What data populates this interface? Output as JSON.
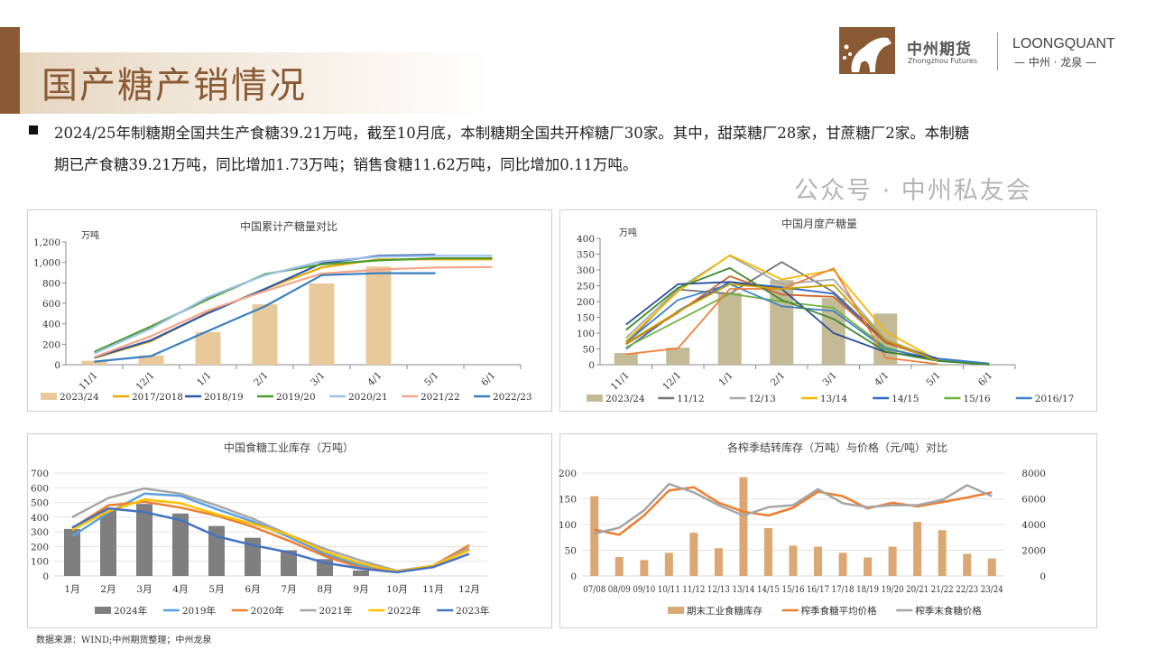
{
  "header": {
    "title": "国产糖产销情况",
    "logo_cn": "中州期货",
    "logo_en": "Zhongzhou Futures",
    "logo2": "LOONGQUANT",
    "logo2_cn": "— 中州 · 龙泉 —"
  },
  "summary": {
    "line1": "2024/25年制糖期全国共生产食糖39.21万吨，截至10月底，本制糖期全国共开榨糖厂30家。其中，甜菜糖厂28家，甘蔗糖厂2家。本制糖",
    "line2": "期已产食糖39.21万吨，同比增加1.73万吨；销售食糖11.62万吨，同比增加0.11万吨。"
  },
  "footer": {
    "source": "数据来源：WIND;中州期货整理；中州龙泉",
    "watermark": "公众号 · 中州私友会"
  },
  "colors": {
    "brand": "#8a5a34"
  },
  "chart_data": [
    {
      "type": "bar+line",
      "title": "中国累计产糖量对比",
      "ylabel": "万吨",
      "ylim": [
        0,
        1200
      ],
      "ystep": 200,
      "categories": [
        "11/1",
        "12/1",
        "1/1",
        "2/1",
        "3/1",
        "4/1",
        "5/1",
        "6/1"
      ],
      "series": [
        {
          "name": "2023/24",
          "kind": "bar",
          "color": "#e8c99a",
          "values": [
            38,
            90,
            320,
            590,
            795,
            960,
            null,
            null
          ]
        },
        {
          "name": "2017/2018",
          "kind": "line",
          "color": "#e8a800",
          "values": [
            65,
            230,
            510,
            740,
            950,
            1030,
            1030,
            1030
          ]
        },
        {
          "name": "2018/19",
          "kind": "line",
          "color": "#2f5aa8",
          "values": [
            70,
            240,
            505,
            740,
            990,
            1065,
            1075,
            null
          ]
        },
        {
          "name": "2019/20",
          "kind": "line",
          "color": "#4e9a2e",
          "values": [
            125,
            375,
            640,
            885,
            980,
            1020,
            1040,
            1040
          ]
        },
        {
          "name": "2020/21",
          "kind": "line",
          "color": "#9bbfe8",
          "values": [
            110,
            355,
            660,
            875,
            1010,
            1055,
            1065,
            1065
          ]
        },
        {
          "name": "2021/22",
          "kind": "line",
          "color": "#f4a58a",
          "values": [
            75,
            280,
            530,
            720,
            890,
            930,
            950,
            955
          ]
        },
        {
          "name": "2022/23",
          "kind": "line",
          "color": "#3a7fc0",
          "values": [
            30,
            85,
            330,
            570,
            875,
            895,
            895,
            null
          ]
        }
      ]
    },
    {
      "type": "bar+line",
      "title": "中国月度产糖量",
      "ylabel": "万吨",
      "ylim": [
        0,
        400
      ],
      "ystep": 50,
      "categories": [
        "11/1",
        "12/1",
        "1/1",
        "2/1",
        "3/1",
        "4/1",
        "5/1",
        "6/1"
      ],
      "series": [
        {
          "name": "2023/24",
          "kind": "bar",
          "color": "#c4bb96",
          "values": [
            37,
            54,
            228,
            268,
            211,
            162,
            null,
            null
          ]
        },
        {
          "name": "11/12",
          "kind": "line",
          "color": "#777777",
          "values": [
            65,
            238,
            225,
            325,
            230,
            75,
            15,
            2
          ]
        },
        {
          "name": "12/13",
          "kind": "line",
          "color": "#aaaaaa",
          "values": [
            85,
            240,
            345,
            255,
            270,
            80,
            18,
            3
          ]
        },
        {
          "name": "13/14",
          "kind": "line",
          "color": "#f5b800",
          "values": [
            75,
            232,
            347,
            270,
            300,
            105,
            15,
            2
          ]
        },
        {
          "name": "14/15",
          "kind": "line",
          "color": "#3568c8",
          "values": [
            50,
            170,
            262,
            245,
            225,
            70,
            20,
            4
          ]
        },
        {
          "name": "15/16",
          "kind": "line",
          "color": "#6db33f",
          "values": [
            55,
            140,
            225,
            200,
            180,
            55,
            12,
            1
          ]
        },
        {
          "name": "2016/17",
          "kind": "line",
          "color": "#3f82c4",
          "values": [
            70,
            205,
            255,
            185,
            170,
            50,
            18,
            3
          ]
        },
        {
          "name": "",
          "kind": "line",
          "color": "#f07f3a",
          "values": [
            33,
            52,
            240,
            240,
            305,
            22,
            2,
            null
          ]
        },
        {
          "name": "",
          "kind": "line",
          "color": "#d0642a",
          "values": [
            65,
            165,
            280,
            222,
            215,
            70,
            15,
            null
          ]
        },
        {
          "name": "",
          "kind": "line",
          "color": "#2b4f9a",
          "values": [
            127,
            255,
            262,
            240,
            100,
            40,
            20,
            null
          ]
        },
        {
          "name": "",
          "kind": "line",
          "color": "#3f8a2e",
          "values": [
            110,
            243,
            306,
            205,
            145,
            42,
            12,
            0
          ]
        },
        {
          "name": "",
          "kind": "line",
          "color": "#c9a000",
          "values": [
            68,
            168,
            255,
            240,
            252,
            78,
            12,
            null
          ]
        }
      ]
    },
    {
      "type": "bar+line",
      "title": "中国食糖工业库存（万吨）",
      "ylim": [
        0,
        700
      ],
      "ystep": 100,
      "grid": true,
      "categories": [
        "1月",
        "2月",
        "3月",
        "4月",
        "5月",
        "6月",
        "7月",
        "8月",
        "9月",
        "10月",
        "11月",
        "12月"
      ],
      "series": [
        {
          "name": "2024年",
          "kind": "bar",
          "color": "#7f7f7f",
          "values": [
            320,
            450,
            490,
            425,
            340,
            260,
            175,
            115,
            38,
            null,
            null,
            null
          ]
        },
        {
          "name": "2019年",
          "kind": "line",
          "color": "#5aa0e0",
          "values": [
            270,
            430,
            560,
            545,
            455,
            370,
            265,
            150,
            70,
            30,
            70,
            185
          ]
        },
        {
          "name": "2020年",
          "kind": "line",
          "color": "#ed7d31",
          "values": [
            325,
            480,
            505,
            465,
            410,
            335,
            240,
            135,
            55,
            30,
            70,
            210
          ]
        },
        {
          "name": "2021年",
          "kind": "line",
          "color": "#a5a5a5",
          "values": [
            400,
            530,
            595,
            560,
            480,
            390,
            280,
            185,
            105,
            35,
            70,
            190
          ]
        },
        {
          "name": "2022年",
          "kind": "line",
          "color": "#ffc000",
          "values": [
            315,
            440,
            520,
            495,
            420,
            355,
            280,
            165,
            85,
            30,
            70,
            175
          ]
        },
        {
          "name": "2023年",
          "kind": "line",
          "color": "#4472c4",
          "values": [
            330,
            460,
            435,
            380,
            270,
            210,
            160,
            90,
            50,
            25,
            60,
            150
          ]
        }
      ]
    },
    {
      "type": "bar+line",
      "title": "各榨季结转库存（万吨）与价格（元/吨）对比",
      "ylim": [
        0,
        200
      ],
      "ystep": 50,
      "y2lim": [
        0,
        8000
      ],
      "y2step": 2000,
      "grid": true,
      "categories": [
        "07/08",
        "08/09",
        "09/10",
        "10/11",
        "11/12",
        "12/13",
        "13/14",
        "14/15",
        "15/16",
        "16/17",
        "17/18",
        "18/19",
        "19/20",
        "20/21",
        "21/22",
        "22/23",
        "23/24"
      ],
      "series": [
        {
          "name": "期末工业食糖库存",
          "kind": "bar",
          "color": "#dba873",
          "values": [
            155,
            37,
            31,
            45,
            84,
            54,
            192,
            93,
            59,
            57,
            45,
            36,
            57,
            105,
            89,
            43,
            34
          ]
        },
        {
          "name": "榨季食糖平均价格",
          "kind": "line",
          "axis": "right",
          "color": "#ed7d31",
          "values": [
            3600,
            3200,
            4700,
            6650,
            6900,
            5700,
            5000,
            4700,
            5300,
            6550,
            6200,
            5250,
            5700,
            5400,
            5750,
            6100,
            6500
          ]
        },
        {
          "name": "榨季末食糖价格",
          "kind": "line",
          "axis": "right",
          "color": "#a5a5a5",
          "values": [
            3300,
            3750,
            5100,
            7150,
            6500,
            5500,
            4700,
            5350,
            5500,
            6750,
            5650,
            5350,
            5500,
            5500,
            5900,
            7050,
            6200
          ]
        }
      ]
    }
  ]
}
